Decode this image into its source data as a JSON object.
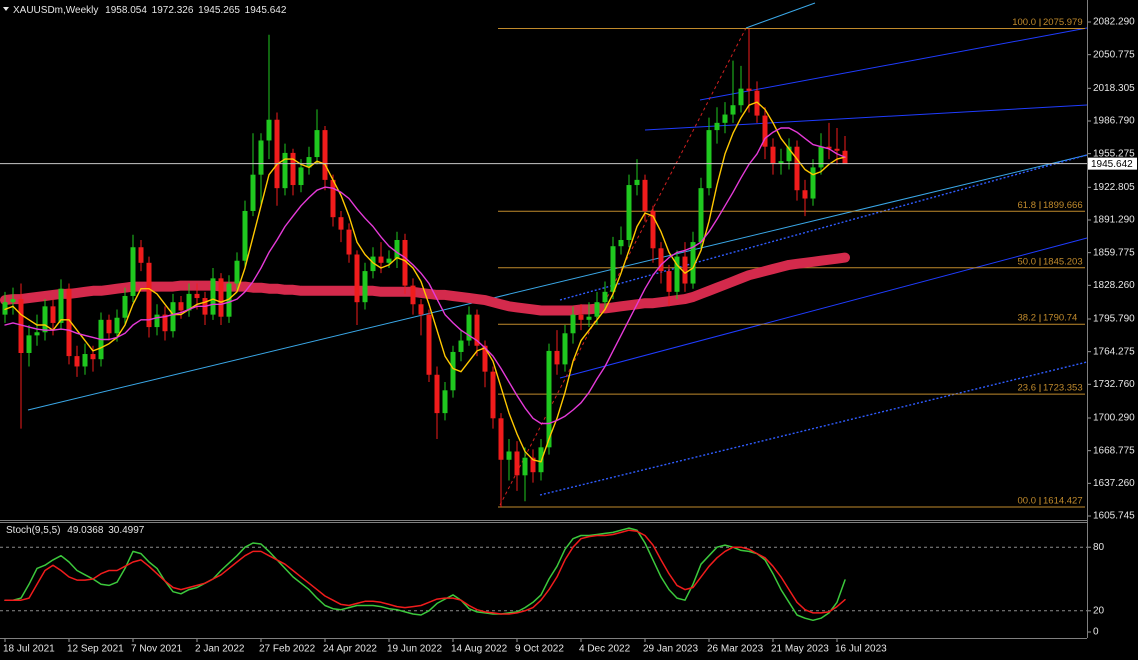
{
  "chart_data": [
    {
      "type": "candlestick",
      "title": "XAUUSDm,Weekly",
      "categories": [
        "18 Jul 2021",
        null,
        null,
        null,
        null,
        null,
        null,
        null,
        "12 Sep 2021",
        null,
        null,
        null,
        null,
        null,
        null,
        null,
        "7 Nov 2021",
        null,
        null,
        null,
        null,
        null,
        null,
        null,
        "2 Jan 2022",
        null,
        null,
        null,
        null,
        null,
        null,
        null,
        "27 Feb 2022",
        null,
        null,
        null,
        null,
        null,
        null,
        null,
        "24 Apr 2022",
        null,
        null,
        null,
        null,
        null,
        null,
        null,
        "19 Jun 2022",
        null,
        null,
        null,
        null,
        null,
        null,
        null,
        "14 Aug 2022",
        null,
        null,
        null,
        null,
        null,
        null,
        null,
        "9 Oct 2022",
        null,
        null,
        null,
        null,
        null,
        null,
        null,
        "4 Dec 2022",
        null,
        null,
        null,
        null,
        null,
        null,
        null,
        "29 Jan 2023",
        null,
        null,
        null,
        null,
        null,
        null,
        null,
        "26 Mar 2023",
        null,
        null,
        null,
        null,
        null,
        null,
        null,
        "21 May 2023",
        null,
        null,
        null,
        null,
        null,
        null,
        null,
        "16 Jul 2023",
        null
      ],
      "open": [
        1800,
        1812,
        1815,
        1763,
        1780,
        1783,
        1808,
        1792,
        1825,
        1760,
        1750,
        1762,
        1757,
        1795,
        1782,
        1797,
        1818,
        1865,
        1850,
        1788,
        1800,
        1784,
        1812,
        1804,
        1820,
        1816,
        1800,
        1835,
        1798,
        1830,
        1852,
        1900,
        1935,
        1968,
        1988,
        1922,
        1956,
        1925,
        1942,
        1952,
        1978,
        1930,
        1894,
        1882,
        1858,
        1812,
        1842,
        1856,
        1850,
        1854,
        1872,
        1828,
        1810,
        1800,
        1742,
        1705,
        1727,
        1764,
        1775,
        1800,
        1770,
        1745,
        1700,
        1660,
        1668,
        1645,
        1662,
        1648,
        1672,
        1765,
        1752,
        1782,
        1800,
        1795,
        1798,
        1812,
        1822,
        1866,
        1872,
        1925,
        1930,
        1900,
        1864,
        1842,
        1822,
        1856,
        1830,
        1870,
        1922,
        1978,
        1985,
        1993,
        2002,
        2018,
        2016,
        1992,
        1962,
        1946,
        1948,
        1962,
        1920,
        1912,
        1942,
        1962,
        1960,
        1958.054
      ],
      "high": [
        1822,
        1826,
        1830,
        1790,
        1800,
        1815,
        1815,
        1834,
        1830,
        1770,
        1772,
        1770,
        1802,
        1800,
        1805,
        1826,
        1877,
        1872,
        1856,
        1810,
        1808,
        1820,
        1818,
        1830,
        1830,
        1822,
        1845,
        1840,
        1838,
        1860,
        1910,
        1975,
        1975,
        2070,
        1995,
        1965,
        1960,
        1950,
        1962,
        1998,
        1982,
        1935,
        1900,
        1888,
        1862,
        1850,
        1865,
        1870,
        1862,
        1880,
        1878,
        1835,
        1815,
        1805,
        1750,
        1735,
        1770,
        1785,
        1808,
        1805,
        1775,
        1750,
        1705,
        1680,
        1678,
        1672,
        1670,
        1680,
        1772,
        1785,
        1790,
        1808,
        1810,
        1812,
        1822,
        1832,
        1875,
        1885,
        1935,
        1950,
        1935,
        1905,
        1870,
        1848,
        1862,
        1870,
        1880,
        1932,
        1990,
        2000,
        2005,
        2045,
        2040,
        2075.979,
        2025,
        2000,
        1970,
        1960,
        1970,
        1968,
        1930,
        1950,
        1975,
        1985,
        1980,
        1972.326
      ],
      "low": [
        1792,
        1800,
        1690,
        1750,
        1770,
        1775,
        1780,
        1785,
        1752,
        1740,
        1742,
        1745,
        1750,
        1775,
        1774,
        1790,
        1812,
        1842,
        1778,
        1780,
        1775,
        1778,
        1796,
        1798,
        1805,
        1790,
        1795,
        1790,
        1792,
        1824,
        1845,
        1895,
        1905,
        1950,
        1905,
        1915,
        1915,
        1918,
        1935,
        1945,
        1920,
        1885,
        1870,
        1850,
        1790,
        1805,
        1835,
        1840,
        1845,
        1845,
        1820,
        1800,
        1780,
        1735,
        1680,
        1698,
        1720,
        1755,
        1770,
        1760,
        1730,
        1690,
        1614.427,
        1640,
        1630,
        1620,
        1638,
        1640,
        1665,
        1742,
        1745,
        1772,
        1785,
        1788,
        1790,
        1805,
        1815,
        1858,
        1865,
        1915,
        1890,
        1850,
        1830,
        1808,
        1815,
        1822,
        1825,
        1865,
        1915,
        1965,
        1975,
        1985,
        1995,
        1995,
        1985,
        1950,
        1935,
        1935,
        1940,
        1910,
        1895,
        1905,
        1935,
        1950,
        1945,
        1945.265
      ],
      "close": [
        1812,
        1815,
        1763,
        1780,
        1783,
        1808,
        1792,
        1825,
        1760,
        1750,
        1762,
        1757,
        1795,
        1782,
        1797,
        1818,
        1865,
        1850,
        1788,
        1800,
        1784,
        1812,
        1804,
        1820,
        1816,
        1800,
        1835,
        1798,
        1830,
        1852,
        1900,
        1935,
        1968,
        1988,
        1922,
        1956,
        1925,
        1942,
        1952,
        1978,
        1930,
        1894,
        1882,
        1858,
        1812,
        1842,
        1856,
        1850,
        1854,
        1872,
        1828,
        1810,
        1800,
        1742,
        1705,
        1727,
        1764,
        1775,
        1800,
        1770,
        1745,
        1700,
        1660,
        1668,
        1645,
        1662,
        1648,
        1672,
        1765,
        1752,
        1782,
        1800,
        1795,
        1798,
        1812,
        1822,
        1866,
        1872,
        1925,
        1930,
        1900,
        1864,
        1842,
        1822,
        1856,
        1830,
        1870,
        1922,
        1978,
        1985,
        1993,
        2002,
        2018,
        2016,
        1992,
        1962,
        1946,
        1948,
        1962,
        1920,
        1912,
        1942,
        1962,
        1960,
        1958.054,
        1945.642
      ],
      "up_color": "#1fc81f",
      "down_color": "#f01c1c",
      "series": [
        {
          "color": "#ffc800",
          "line_width": 1.4,
          "values": [
            1805,
            1808,
            1800,
            1795,
            1790,
            1790,
            1785,
            1795,
            1795,
            1785,
            1775,
            1765,
            1768,
            1772,
            1778,
            1790,
            1810,
            1825,
            1825,
            1820,
            1810,
            1800,
            1800,
            1805,
            1810,
            1812,
            1815,
            1812,
            1815,
            1822,
            1845,
            1875,
            1905,
            1935,
            1945,
            1950,
            1950,
            1945,
            1942,
            1948,
            1945,
            1930,
            1915,
            1895,
            1870,
            1858,
            1850,
            1845,
            1848,
            1855,
            1852,
            1845,
            1832,
            1810,
            1785,
            1760,
            1748,
            1745,
            1755,
            1765,
            1768,
            1755,
            1730,
            1705,
            1685,
            1668,
            1660,
            1658,
            1680,
            1700,
            1725,
            1755,
            1775,
            1785,
            1795,
            1805,
            1820,
            1840,
            1862,
            1885,
            1898,
            1895,
            1880,
            1860,
            1848,
            1840,
            1845,
            1862,
            1890,
            1925,
            1955,
            1975,
            1990,
            2002,
            2005,
            1998,
            1985,
            1970,
            1960,
            1950,
            1940,
            1935,
            1938,
            1945,
            1950,
            1952
          ]
        },
        {
          "color": "#e53ad8",
          "line_width": 1.4,
          "values": [
            1790,
            1792,
            1790,
            1788,
            1786,
            1785,
            1785,
            1786,
            1785,
            1782,
            1780,
            1778,
            1776,
            1776,
            1778,
            1782,
            1790,
            1795,
            1795,
            1797,
            1798,
            1800,
            1802,
            1805,
            1808,
            1808,
            1810,
            1810,
            1812,
            1815,
            1822,
            1832,
            1845,
            1860,
            1872,
            1885,
            1895,
            1905,
            1913,
            1920,
            1923,
            1922,
            1918,
            1912,
            1902,
            1893,
            1885,
            1875,
            1866,
            1860,
            1855,
            1848,
            1840,
            1830,
            1815,
            1800,
            1792,
            1785,
            1780,
            1775,
            1768,
            1760,
            1748,
            1735,
            1722,
            1710,
            1700,
            1695,
            1695,
            1698,
            1702,
            1708,
            1715,
            1725,
            1738,
            1750,
            1765,
            1780,
            1795,
            1810,
            1825,
            1838,
            1848,
            1855,
            1860,
            1862,
            1865,
            1870,
            1880,
            1892,
            1905,
            1918,
            1932,
            1945,
            1955,
            1970,
            1976,
            1980,
            1980,
            1976,
            1970,
            1964,
            1962,
            1960,
            1955,
            1952
          ]
        },
        {
          "color": "#d42a4c",
          "line_width": 10,
          "values": [
            1814,
            1815,
            1815,
            1816,
            1817,
            1818,
            1819,
            1820,
            1820,
            1821,
            1822,
            1823,
            1823,
            1824,
            1825,
            1826,
            1827,
            1827,
            1827,
            1827,
            1827,
            1827,
            1828,
            1828,
            1828,
            1828,
            1828,
            1827,
            1827,
            1827,
            1827,
            1826,
            1826,
            1825,
            1825,
            1824,
            1824,
            1823,
            1823,
            1823,
            1823,
            1823,
            1823,
            1823,
            1823,
            1823,
            1823,
            1822,
            1822,
            1822,
            1822,
            1822,
            1821,
            1820,
            1819,
            1819,
            1818,
            1817,
            1816,
            1815,
            1814,
            1812,
            1810,
            1808,
            1807,
            1806,
            1805,
            1804,
            1804,
            1804,
            1804,
            1804,
            1805,
            1805,
            1806,
            1806,
            1807,
            1808,
            1809,
            1810,
            1811,
            1811,
            1812,
            1813,
            1814,
            1815,
            1817,
            1820,
            1823,
            1826,
            1829,
            1832,
            1835,
            1838,
            1840,
            1842,
            1844,
            1846,
            1848,
            1849,
            1850,
            1851,
            1852,
            1853,
            1854,
            1855
          ]
        }
      ],
      "fibonacci": [
        {
          "level": "100.0",
          "price": 2075.979
        },
        {
          "level": "61.8",
          "price": 1899.666
        },
        {
          "level": "50.0",
          "price": 1845.203
        },
        {
          "level": "38.2",
          "price": 1790.74
        },
        {
          "level": "23.6",
          "price": 1723.353
        },
        {
          "level": "00.0",
          "price": 1614.427
        }
      ],
      "ylim": [
        1601.9,
        2103.5
      ],
      "yticks": [
        {
          "value": 2082.29,
          "label": "2082.290"
        },
        2050.775,
        2018.305,
        {
          "value": 1986.79,
          "label": "1986.790"
        },
        1955.275,
        1922.805,
        {
          "value": 1891.29,
          "label": "1891.290"
        },
        1859.775,
        {
          "value": 1828.26,
          "label": "1828.260"
        },
        {
          "value": 1795.79,
          "label": "1795.790"
        },
        1764.275,
        {
          "value": 1732.76,
          "label": "1732.760"
        },
        {
          "value": 1700.29,
          "label": "1700.290"
        },
        1668.775,
        {
          "value": 1637.26,
          "label": "1637.260"
        },
        1605.745
      ],
      "grid": false
    },
    {
      "type": "line",
      "title": "Stoch(9,5,5)",
      "series": [
        {
          "color": "#3cc83c",
          "line_width": 1.5,
          "values": [
            30,
            30,
            32,
            45,
            60,
            63,
            68,
            72,
            66,
            58,
            54,
            50,
            45,
            44,
            47,
            60,
            76,
            74,
            66,
            60,
            48,
            38,
            36,
            40,
            42,
            46,
            50,
            58,
            65,
            72,
            80,
            84,
            83,
            76,
            68,
            60,
            52,
            46,
            40,
            32,
            25,
            22,
            21,
            23,
            25,
            25,
            25,
            24,
            22,
            21,
            19,
            17,
            16,
            20,
            27,
            31,
            35,
            30,
            22,
            19,
            18,
            17,
            17,
            18,
            19,
            23,
            28,
            35,
            50,
            62,
            78,
            88,
            91,
            91,
            92,
            93,
            94,
            96,
            98,
            96,
            84,
            68,
            52,
            40,
            32,
            30,
            45,
            64,
            72,
            80,
            82,
            80,
            77,
            76,
            74,
            68,
            55,
            40,
            28,
            16,
            13,
            11,
            13,
            18,
            28,
            49.0368
          ]
        },
        {
          "color": "#f01c1c",
          "line_width": 1.5,
          "values": [
            30,
            30,
            30,
            32,
            45,
            58,
            63,
            58,
            52,
            49,
            49,
            50,
            55,
            58,
            58,
            62,
            66,
            68,
            62,
            55,
            48,
            42,
            40,
            42,
            44,
            46,
            50,
            54,
            60,
            66,
            72,
            76,
            76,
            72,
            68,
            64,
            58,
            52,
            46,
            40,
            34,
            30,
            26,
            25,
            27,
            29,
            29,
            28,
            26,
            24,
            23,
            24,
            25,
            28,
            31,
            32,
            32,
            30,
            25,
            21,
            19,
            18,
            17,
            17,
            18,
            20,
            23,
            30,
            40,
            52,
            68,
            80,
            88,
            90,
            91,
            91,
            92,
            94,
            96,
            95,
            91,
            82,
            68,
            55,
            44,
            40,
            42,
            52,
            62,
            70,
            76,
            80,
            80,
            78,
            74,
            70,
            62,
            52,
            40,
            28,
            21,
            18,
            18,
            19,
            24,
            30.4997
          ]
        }
      ],
      "ylim": [
        0,
        100
      ],
      "yticks": [
        0,
        20,
        80
      ],
      "grid": true
    }
  ]
}
